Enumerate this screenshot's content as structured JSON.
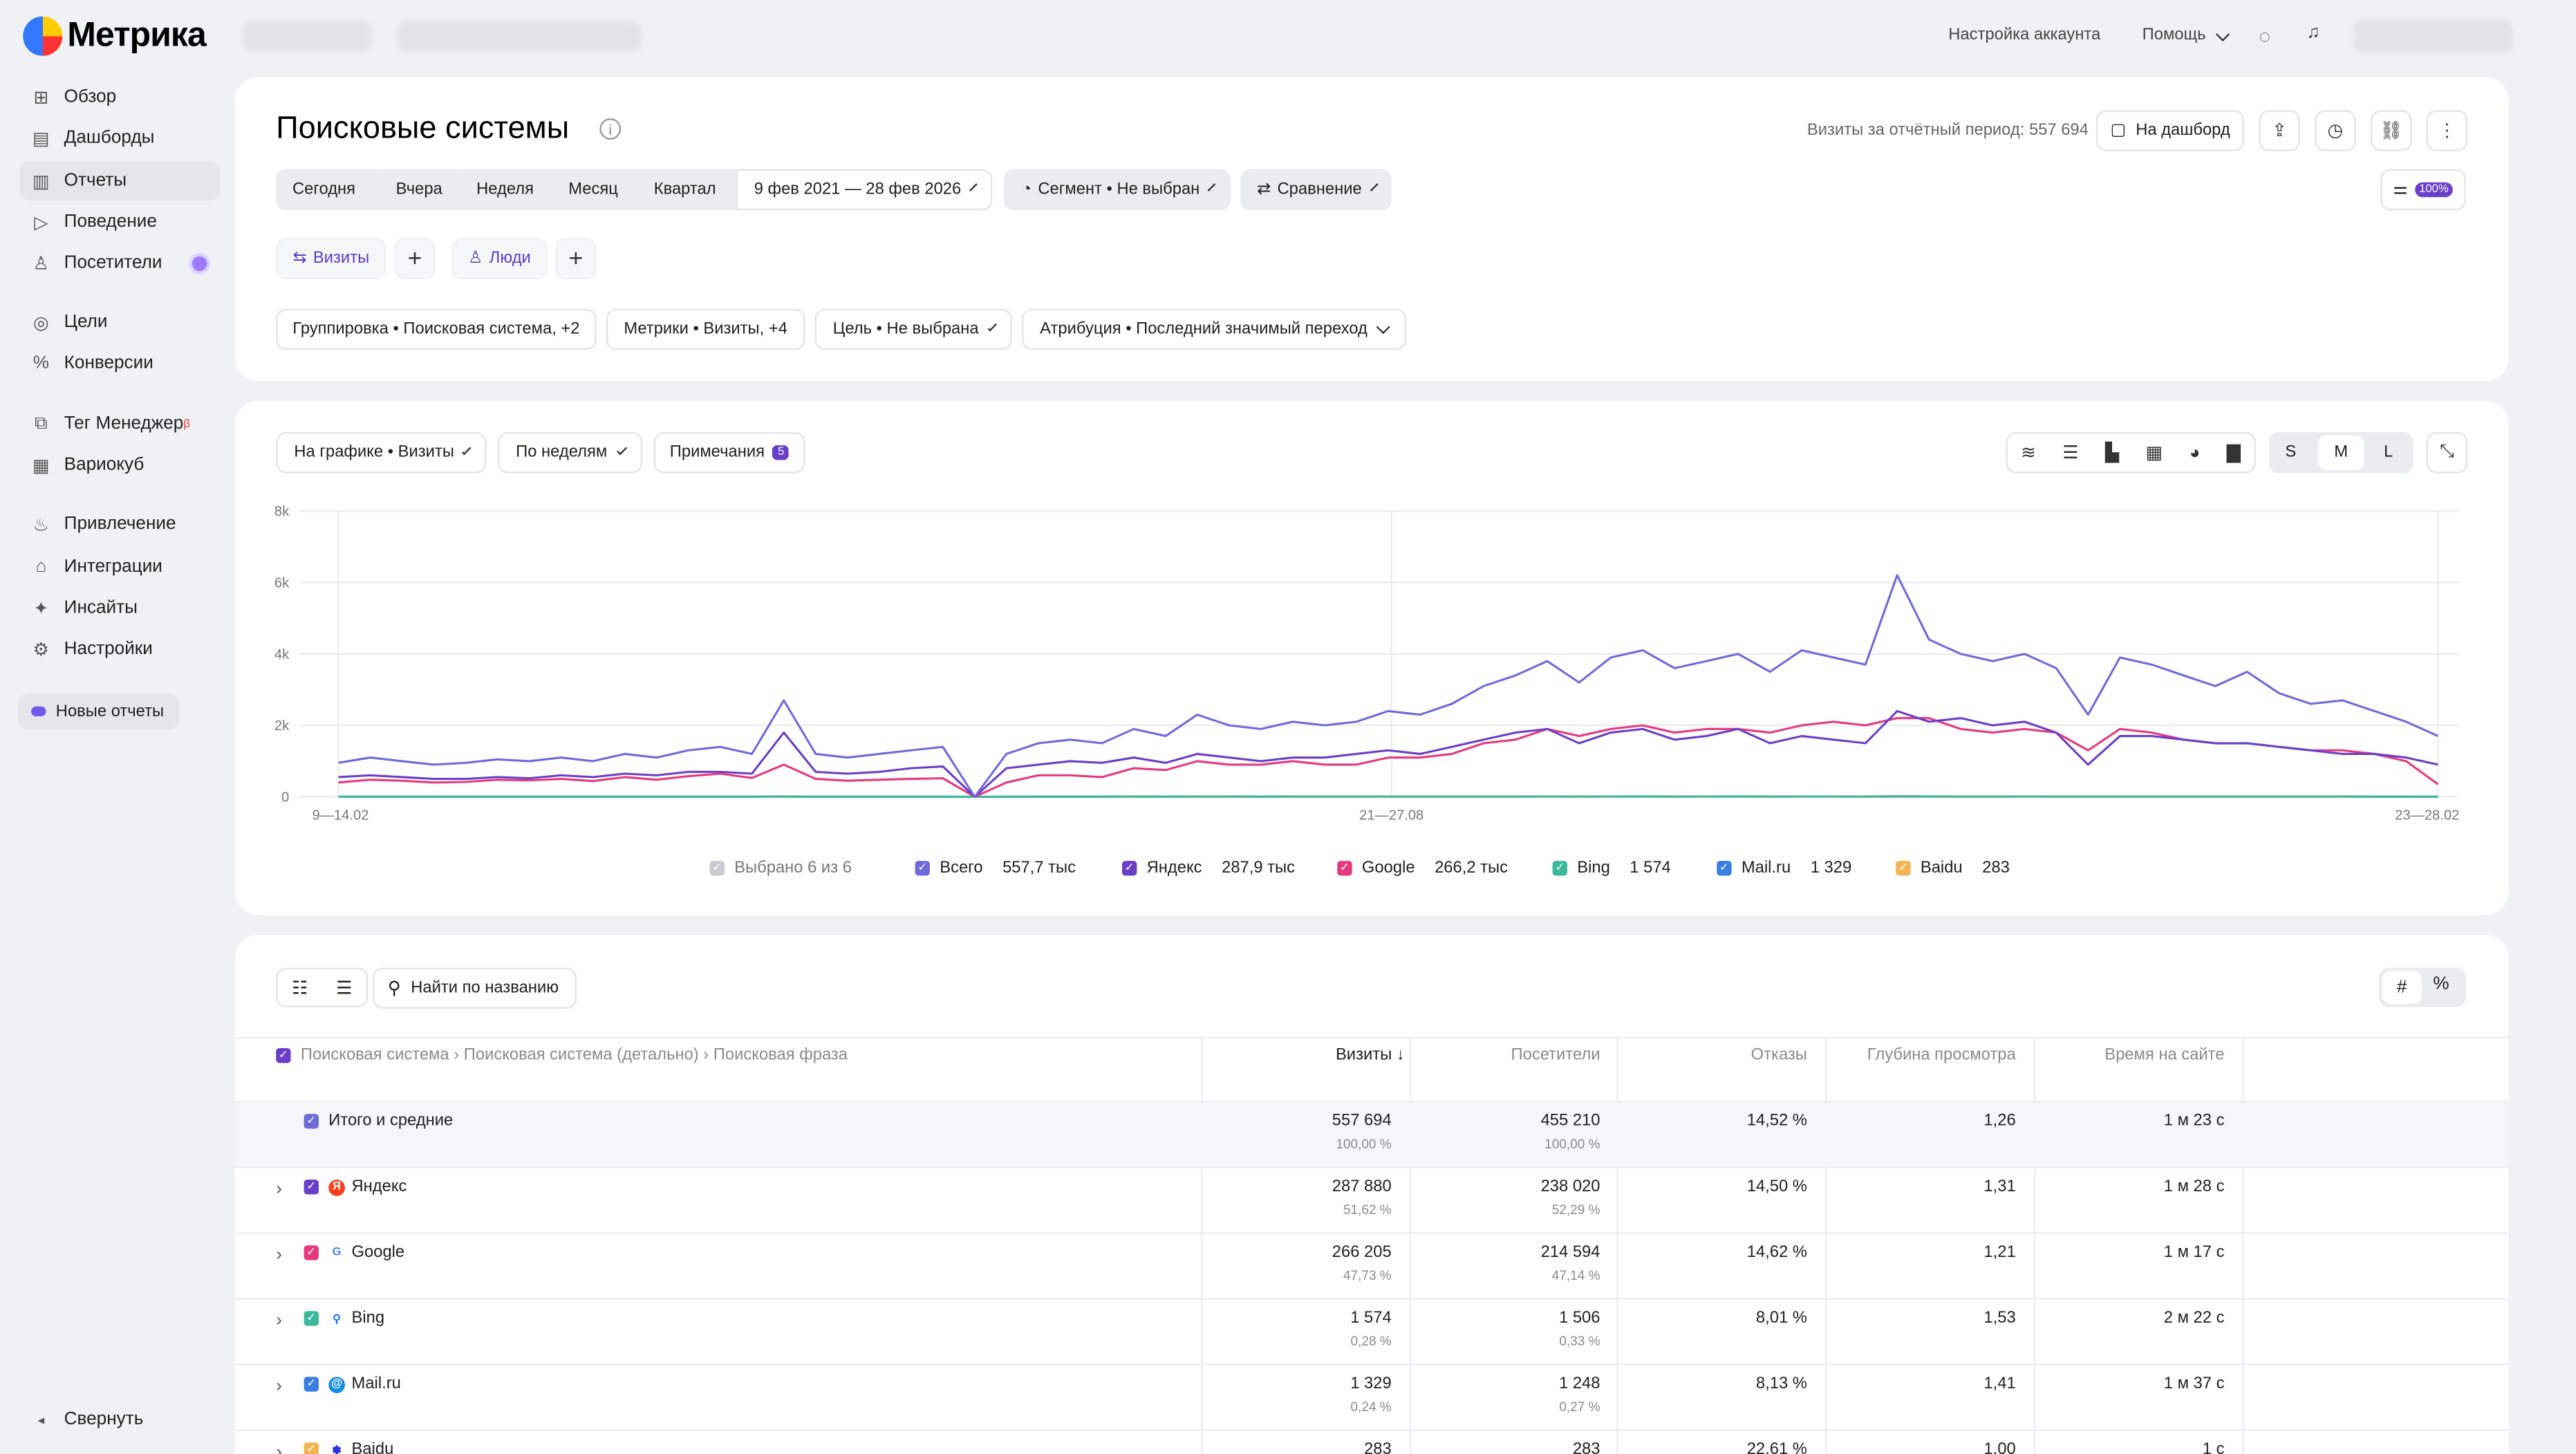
{
  "app": {
    "logo_text": "Метрика"
  },
  "sidebar": {
    "items": [
      {
        "label": "Обзор",
        "icon": "grid-icon"
      },
      {
        "label": "Дашборды",
        "icon": "dashboard-icon"
      },
      {
        "label": "Отчеты",
        "icon": "chart-icon",
        "active": true
      },
      {
        "label": "Поведение",
        "icon": "play-icon"
      },
      {
        "label": "Посетители",
        "icon": "user-icon"
      },
      {
        "label": "Цели",
        "icon": "target-icon"
      },
      {
        "label": "Конверсии",
        "icon": "percent-icon"
      },
      {
        "label": "Тег Менеджер",
        "icon": "tag-icon",
        "badge": "β"
      },
      {
        "label": "Вариокуб",
        "icon": "cube-icon"
      },
      {
        "label": "Привлечение",
        "icon": "fire-icon"
      },
      {
        "label": "Интеграции",
        "icon": "home-icon"
      },
      {
        "label": "Инсайты",
        "icon": "sparkle-icon"
      },
      {
        "label": "Настройки",
        "icon": "gear-icon"
      }
    ],
    "new_reports": "Новые отчеты",
    "collapse": "Свернуть"
  },
  "topbar": {
    "account_settings": "Настройка аккаунта",
    "help": "Помощь"
  },
  "header": {
    "title": "Поисковые системы",
    "visits_summary": "Визиты за отчётный период: 557 694",
    "to_dashboard": "На дашборд",
    "periods": [
      "Сегодня",
      "Вчера",
      "Неделя",
      "Месяц",
      "Квартал"
    ],
    "date_range": "9 фев 2021 — 28 фев 2026",
    "segment": "Сегмент • Не выбран",
    "compare": "Сравнение",
    "sampling": "100%",
    "tab_visits": "Визиты",
    "tab_people": "Люди",
    "filters": {
      "grouping": "Группировка • Поисковая система, +2",
      "metrics": "Метрики • Визиты, +4",
      "goal": "Цель • Не выбрана",
      "attribution": "Атрибуция • Последний значимый переход"
    }
  },
  "chart_controls": {
    "on_chart": "На графике • Визиты",
    "by_period": "По неделям",
    "notes": "Примечания",
    "notes_count": "5",
    "sizes": [
      "S",
      "M",
      "L"
    ],
    "selected_size": "M"
  },
  "legend": {
    "selected": "Выбрано 6 из 6",
    "items": [
      {
        "name": "Всего",
        "value": "557,7 тыс",
        "color": "#6e6bd8"
      },
      {
        "name": "Яндекс",
        "value": "287,9 тыс",
        "color": "#6a3fc7"
      },
      {
        "name": "Google",
        "value": "266,2 тыс",
        "color": "#e5397e"
      },
      {
        "name": "Bing",
        "value": "1 574",
        "color": "#3cb89a"
      },
      {
        "name": "Mail.ru",
        "value": "1 329",
        "color": "#3a7de0"
      },
      {
        "name": "Baidu",
        "value": "283",
        "color": "#f2b454"
      }
    ]
  },
  "chart_data": {
    "type": "line",
    "x_tick_labels": [
      "9—14.02",
      "21—27.08",
      "23—28.02"
    ],
    "y_tick_labels": [
      "0",
      "2k",
      "4k",
      "6k",
      "8k"
    ],
    "ylim": [
      0,
      8000
    ],
    "grid": true,
    "legend_position": "bottom",
    "x": [
      0,
      4,
      8,
      12,
      16,
      20,
      24,
      28,
      32,
      36,
      40,
      44,
      48,
      52,
      56,
      60,
      64,
      68,
      72,
      76,
      80,
      84,
      88,
      92,
      96,
      100,
      104,
      108,
      112,
      116,
      120,
      124,
      128,
      132,
      136,
      140,
      144,
      148,
      152,
      156,
      160,
      164,
      168,
      172,
      176,
      180,
      184,
      188,
      192,
      196,
      200,
      204,
      208,
      212,
      216,
      220,
      224,
      228,
      232,
      236,
      240,
      244,
      248,
      252,
      256,
      260,
      264
    ],
    "series": [
      {
        "name": "Всего",
        "color": "#6e6bd8",
        "values": [
          950,
          1100,
          1000,
          900,
          950,
          1050,
          1000,
          1100,
          1000,
          1200,
          1100,
          1300,
          1400,
          1200,
          2700,
          1200,
          1100,
          1200,
          1300,
          1400,
          0,
          1200,
          1500,
          1600,
          1500,
          1900,
          1700,
          2300,
          2000,
          1900,
          2100,
          2000,
          2100,
          2400,
          2300,
          2600,
          3100,
          3400,
          3800,
          3200,
          3900,
          4100,
          3600,
          3800,
          4000,
          3500,
          4100,
          3900,
          3700,
          6200,
          4400,
          4000,
          3800,
          4000,
          3600,
          2300,
          3900,
          3700,
          3400,
          3100,
          3500,
          2900,
          2600,
          2700,
          2400,
          2100,
          1700
        ]
      },
      {
        "name": "Яндекс",
        "color": "#6a3fc7",
        "values": [
          550,
          600,
          550,
          500,
          500,
          550,
          520,
          600,
          550,
          650,
          600,
          700,
          700,
          650,
          1800,
          700,
          650,
          700,
          800,
          850,
          0,
          800,
          900,
          1000,
          950,
          1100,
          950,
          1200,
          1100,
          1000,
          1100,
          1100,
          1200,
          1300,
          1200,
          1400,
          1600,
          1800,
          1900,
          1500,
          1800,
          1900,
          1600,
          1700,
          1900,
          1500,
          1700,
          1600,
          1500,
          2400,
          2100,
          2200,
          2000,
          2100,
          1800,
          900,
          1700,
          1700,
          1600,
          1500,
          1500,
          1400,
          1300,
          1200,
          1200,
          1100,
          900
        ]
      },
      {
        "name": "Google",
        "color": "#e5397e",
        "values": [
          400,
          480,
          450,
          400,
          420,
          480,
          460,
          500,
          440,
          550,
          480,
          580,
          650,
          530,
          900,
          500,
          450,
          480,
          500,
          520,
          0,
          400,
          600,
          600,
          550,
          800,
          750,
          1000,
          900,
          900,
          1000,
          900,
          900,
          1100,
          1100,
          1200,
          1500,
          1600,
          1900,
          1700,
          1900,
          2000,
          1800,
          1900,
          1900,
          1800,
          2000,
          2100,
          2000,
          2200,
          2200,
          1900,
          1800,
          1900,
          1800,
          1300,
          1900,
          1800,
          1600,
          1500,
          1500,
          1400,
          1300,
          1300,
          1200,
          1000,
          350
        ]
      },
      {
        "name": "Bing",
        "color": "#3cb89a",
        "values": [
          5,
          6,
          5,
          5,
          5,
          6,
          5,
          6,
          5,
          6,
          5,
          6,
          6,
          5,
          8,
          5,
          5,
          6,
          6,
          6,
          0,
          6,
          7,
          7,
          7,
          8,
          7,
          8,
          8,
          7,
          8,
          8,
          8,
          9,
          9,
          9,
          10,
          10,
          11,
          10,
          11,
          12,
          11,
          11,
          12,
          10,
          11,
          11,
          10,
          14,
          12,
          11,
          10,
          11,
          10,
          8,
          10,
          10,
          9,
          9,
          9,
          8,
          8,
          8,
          7,
          7,
          6
        ]
      },
      {
        "name": "Mail.ru",
        "color": "#3a7de0",
        "values": [
          5,
          5,
          5,
          4,
          5,
          5,
          5,
          5,
          5,
          6,
          5,
          6,
          6,
          5,
          7,
          5,
          5,
          5,
          5,
          6,
          0,
          5,
          6,
          6,
          6,
          7,
          6,
          7,
          7,
          6,
          7,
          7,
          7,
          8,
          8,
          8,
          9,
          9,
          10,
          9,
          10,
          10,
          9,
          10,
          10,
          9,
          10,
          10,
          9,
          12,
          10,
          10,
          9,
          10,
          9,
          7,
          9,
          9,
          8,
          8,
          8,
          7,
          7,
          7,
          6,
          6,
          5
        ]
      },
      {
        "name": "Baidu",
        "color": "#f2b454",
        "values": [
          1,
          1,
          1,
          1,
          1,
          1,
          1,
          1,
          1,
          1,
          1,
          1,
          1,
          1,
          2,
          1,
          1,
          1,
          1,
          1,
          0,
          1,
          1,
          1,
          1,
          1,
          1,
          2,
          2,
          1,
          2,
          2,
          2,
          2,
          2,
          2,
          2,
          2,
          3,
          2,
          3,
          3,
          2,
          3,
          3,
          2,
          3,
          3,
          2,
          3,
          3,
          2,
          2,
          3,
          2,
          2,
          2,
          2,
          2,
          2,
          2,
          2,
          2,
          2,
          2,
          1,
          1
        ]
      }
    ]
  },
  "table": {
    "search_placeholder": "Найти по названию",
    "dimension_header": "Поисковая система › Поисковая система (детально) › Поисковая фраза",
    "columns": [
      "Визиты ↓",
      "Посетители",
      "Отказы",
      "Глубина просмотра",
      "Время на сайте"
    ],
    "total": {
      "label": "Итого и средние",
      "visits": "557 694",
      "visits_pct": "100,00 %",
      "visitors": "455 210",
      "visitors_pct": "100,00 %",
      "bounce": "14,52 %",
      "depth": "1,26",
      "time": "1 м 23 с"
    },
    "rows": [
      {
        "label": "Яндекс",
        "icon": "yandex-icon",
        "color": "#6a3fc7",
        "visits": "287 880",
        "visits_pct": "51,62 %",
        "visitors": "238 020",
        "visitors_pct": "52,29 %",
        "bounce": "14,50 %",
        "depth": "1,31",
        "time": "1 м 28 с"
      },
      {
        "label": "Google",
        "icon": "google-icon",
        "color": "#e5397e",
        "visits": "266 205",
        "visits_pct": "47,73 %",
        "visitors": "214 594",
        "visitors_pct": "47,14 %",
        "bounce": "14,62 %",
        "depth": "1,21",
        "time": "1 м 17 с"
      },
      {
        "label": "Bing",
        "icon": "bing-icon",
        "color": "#3cb89a",
        "visits": "1 574",
        "visits_pct": "0,28 %",
        "visitors": "1 506",
        "visitors_pct": "0,33 %",
        "bounce": "8,01 %",
        "depth": "1,53",
        "time": "2 м 22 с"
      },
      {
        "label": "Mail.ru",
        "icon": "mailru-icon",
        "color": "#3a7de0",
        "visits": "1 329",
        "visits_pct": "0,24 %",
        "visitors": "1 248",
        "visitors_pct": "0,27 %",
        "bounce": "8,13 %",
        "depth": "1,41",
        "time": "1 м 37 с"
      },
      {
        "label": "Baidu",
        "icon": "baidu-icon",
        "color": "#f2b454",
        "visits": "283",
        "visits_pct": "",
        "visitors": "283",
        "visitors_pct": "",
        "bounce": "22,61 %",
        "depth": "1,00",
        "time": "1 с"
      }
    ]
  }
}
